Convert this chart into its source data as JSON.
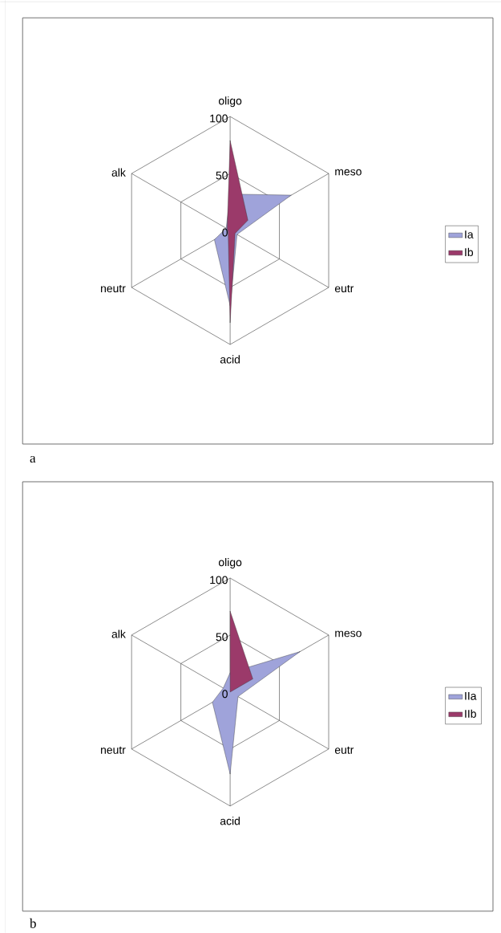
{
  "chart_data": [
    {
      "type": "radar",
      "categories": [
        "oligo",
        "meso",
        "eutr",
        "acid",
        "neutr",
        "alk"
      ],
      "ylim": [
        0,
        100
      ],
      "yticks": [
        0,
        50,
        100
      ],
      "grid": true,
      "legend": "right",
      "annotations": [
        "a"
      ],
      "series": [
        {
          "name": "Ia",
          "color": "#9fa3da",
          "values": [
            32,
            62,
            7,
            66,
            16,
            4
          ]
        },
        {
          "name": "Ib",
          "color": "#9b3a6a",
          "values": [
            79,
            18,
            5,
            81,
            2,
            3
          ]
        }
      ]
    },
    {
      "type": "radar",
      "categories": [
        "oligo",
        "meso",
        "eutr",
        "acid",
        "neutr",
        "alk"
      ],
      "ylim": [
        0,
        100
      ],
      "yticks": [
        0,
        50,
        100
      ],
      "grid": true,
      "legend": "right",
      "annotations": [
        "b"
      ],
      "series": [
        {
          "name": "IIa",
          "color": "#9fa3da",
          "values": [
            17,
            71,
            8,
            72,
            18,
            7
          ]
        },
        {
          "name": "IIb",
          "color": "#9b3a6a",
          "values": [
            71,
            23,
            0,
            0,
            0,
            0
          ]
        }
      ]
    }
  ]
}
